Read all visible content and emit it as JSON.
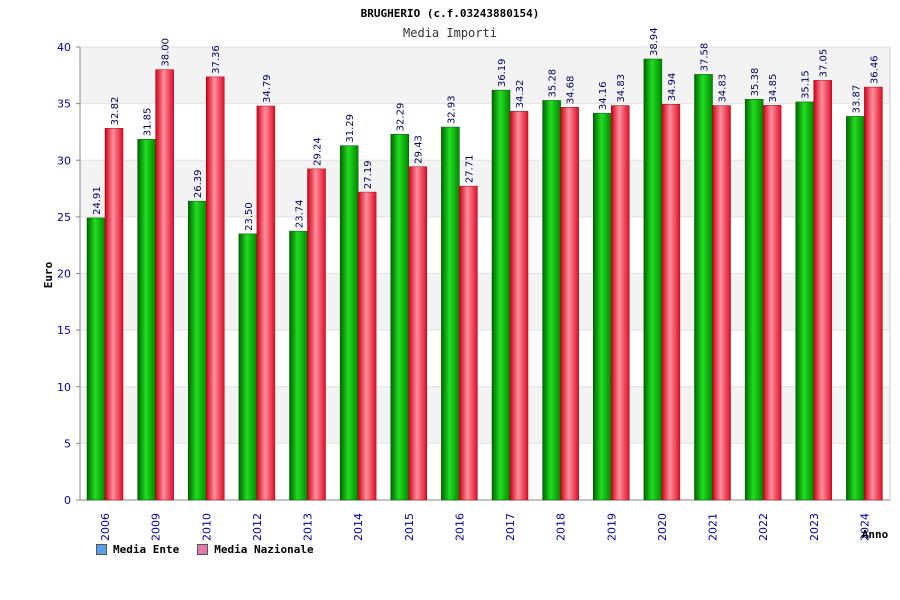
{
  "chart_data": {
    "type": "bar",
    "title": "BRUGHERIO (c.f.03243880154)",
    "subtitle": "Media Importi",
    "xlabel": "Anno",
    "ylabel": "Euro",
    "ylim": [
      0,
      40
    ],
    "yticks": [
      0,
      5,
      10,
      15,
      20,
      25,
      30,
      35,
      40
    ],
    "grid": true,
    "legend_position": "bottom-left",
    "categories": [
      "2006",
      "2009",
      "2010",
      "2012",
      "2013",
      "2014",
      "2015",
      "2016",
      "2017",
      "2018",
      "2019",
      "2020",
      "2021",
      "2022",
      "2023",
      "2024"
    ],
    "series": [
      {
        "name": "Media Ente",
        "color": "#00aa00",
        "legend_color": "#5aa0e6",
        "values": [
          24.91,
          31.85,
          26.39,
          23.5,
          23.74,
          31.29,
          32.29,
          32.93,
          36.19,
          35.28,
          34.16,
          38.94,
          37.58,
          35.38,
          35.15,
          33.87
        ],
        "labels": [
          "24.91",
          "31.85",
          "26.39",
          "23.50",
          "23.74",
          "31.29",
          "32.29",
          "32.93",
          "36.19",
          "35.28",
          "34.16",
          "38.94",
          "37.58",
          "35.38",
          "35.15",
          "33.87"
        ]
      },
      {
        "name": "Media Nazionale",
        "color": "#e8102a",
        "legend_color": "#e07aa8",
        "values": [
          32.82,
          38.0,
          37.36,
          34.79,
          29.24,
          27.19,
          29.43,
          27.71,
          34.32,
          34.68,
          34.83,
          34.94,
          34.83,
          34.85,
          37.05,
          36.46
        ],
        "labels": [
          "32.82",
          "38.00",
          "37.36",
          "34.79",
          "29.24",
          "27.19",
          "29.43",
          "27.71",
          "34.32",
          "34.68",
          "34.83",
          "34.94",
          "34.83",
          "34.85",
          "37.05",
          "36.46"
        ]
      }
    ]
  }
}
